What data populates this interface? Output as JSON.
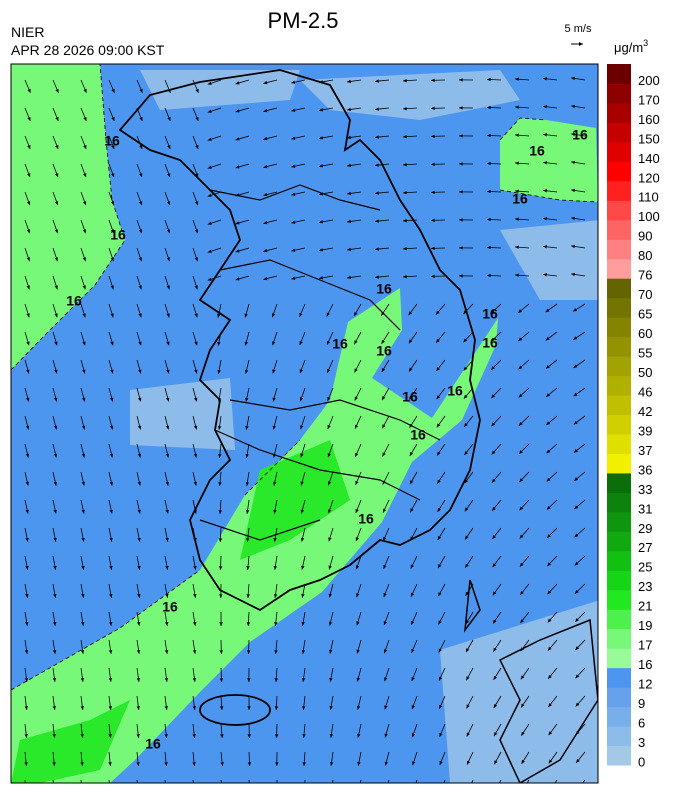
{
  "header": {
    "title": "PM-2.5",
    "agency": "NIER",
    "timestamp": "APR 28 2026 09:00 KST",
    "wind_scale": "5 m/s",
    "unit": "μg/m",
    "unit_superscript": "3"
  },
  "colorbar": {
    "levels": [
      0,
      3,
      6,
      9,
      12,
      16,
      17,
      19,
      21,
      23,
      25,
      27,
      29,
      31,
      33,
      36,
      37,
      39,
      42,
      46,
      50,
      55,
      60,
      65,
      70,
      76,
      80,
      90,
      100,
      110,
      120,
      140,
      150,
      160,
      170,
      200
    ],
    "colors": [
      "#a3c9e6",
      "#8dbbea",
      "#78aeea",
      "#66a2ec",
      "#4d96ef",
      "#98fa98",
      "#78f878",
      "#4df04d",
      "#22e822",
      "#16d416",
      "#12c012",
      "#10aa10",
      "#0f960f",
      "#0d820d",
      "#0b6e0b",
      "#f0f000",
      "#e0e000",
      "#d0d000",
      "#c0c000",
      "#b0b000",
      "#a2a200",
      "#939300",
      "#848400",
      "#747400",
      "#646400",
      "#ff9c9c",
      "#ff8080",
      "#ff6464",
      "#ff4848",
      "#ff2020",
      "#ff0000",
      "#e00000",
      "#c40000",
      "#a80000",
      "#8c0000",
      "#6c0000"
    ]
  },
  "contour_labels": [
    "16",
    "16",
    "16",
    "16",
    "16",
    "16",
    "16",
    "16",
    "16",
    "16",
    "16",
    "16",
    "16",
    "16",
    "16",
    "16",
    "16"
  ]
}
